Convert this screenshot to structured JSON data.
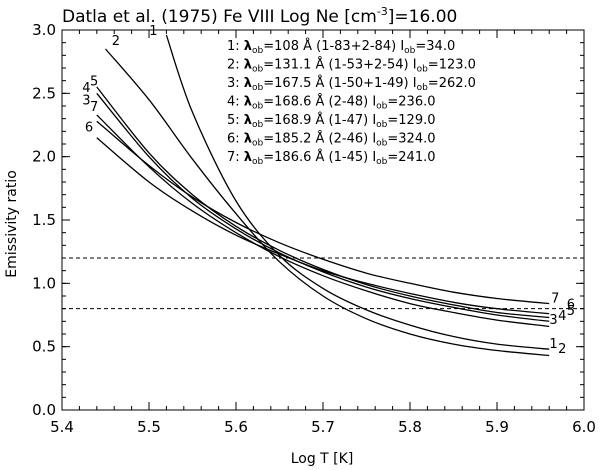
{
  "chart_data": {
    "type": "line",
    "title": {
      "source": "Datla et al. (1975)",
      "ion": "Fe VIII",
      "density": "Log Ne [cm",
      "density_exp": "-3",
      "density_val": "]=16.00"
    },
    "xlabel": "Log T [K]",
    "ylabel": "Emissivity ratio",
    "xlim": [
      5.4,
      6.0
    ],
    "ylim": [
      0.0,
      3.0
    ],
    "xticks": [
      "5.4",
      "5.5",
      "5.6",
      "5.7",
      "5.8",
      "5.9",
      "6.0"
    ],
    "yticks": [
      "0.0",
      "0.5",
      "1.0",
      "1.5",
      "2.0",
      "2.5",
      "3.0"
    ],
    "reference_lines": [
      1.2,
      0.8
    ],
    "series": [
      {
        "name": "1",
        "wavelength": "108",
        "transition": "(1-83+2-84)",
        "iob": "34.0",
        "x": [
          5.52,
          5.55,
          5.6,
          5.65,
          5.7,
          5.75,
          5.8,
          5.85,
          5.9,
          5.96
        ],
        "values": [
          2.96,
          2.35,
          1.65,
          1.22,
          0.96,
          0.79,
          0.67,
          0.58,
          0.52,
          0.48
        ]
      },
      {
        "name": "2",
        "wavelength": "131.1",
        "transition": "(1-53+2-54)",
        "iob": "123.0",
        "x": [
          5.45,
          5.5,
          5.55,
          5.6,
          5.65,
          5.7,
          5.75,
          5.8,
          5.85,
          5.9,
          5.96
        ],
        "values": [
          2.85,
          2.45,
          1.98,
          1.55,
          1.17,
          0.9,
          0.72,
          0.6,
          0.52,
          0.47,
          0.43
        ]
      },
      {
        "name": "3",
        "wavelength": "167.5",
        "transition": "(1-50+1-49)",
        "iob": "262.0",
        "x": [
          5.44,
          5.5,
          5.55,
          5.6,
          5.65,
          5.7,
          5.75,
          5.8,
          5.85,
          5.9,
          5.96
        ],
        "values": [
          2.33,
          1.92,
          1.63,
          1.4,
          1.21,
          1.06,
          0.94,
          0.84,
          0.77,
          0.71,
          0.66
        ]
      },
      {
        "name": "4",
        "wavelength": "168.6",
        "transition": "(2-48)",
        "iob": "236.0",
        "x": [
          5.44,
          5.5,
          5.55,
          5.6,
          5.65,
          5.7,
          5.75,
          5.8,
          5.85,
          5.9,
          5.96
        ],
        "values": [
          2.5,
          2.0,
          1.67,
          1.43,
          1.24,
          1.09,
          0.97,
          0.88,
          0.81,
          0.75,
          0.7
        ]
      },
      {
        "name": "5",
        "wavelength": "168.9",
        "transition": "(1-47)",
        "iob": "129.0",
        "x": [
          5.44,
          5.5,
          5.55,
          5.6,
          5.65,
          5.7,
          5.75,
          5.8,
          5.85,
          5.9,
          5.96
        ],
        "values": [
          2.55,
          2.03,
          1.7,
          1.45,
          1.26,
          1.11,
          0.99,
          0.9,
          0.83,
          0.77,
          0.73
        ]
      },
      {
        "name": "6",
        "wavelength": "185.2",
        "transition": "(2-46)",
        "iob": "324.0",
        "x": [
          5.44,
          5.5,
          5.55,
          5.6,
          5.65,
          5.7,
          5.75,
          5.8,
          5.85,
          5.9,
          5.96
        ],
        "values": [
          2.15,
          1.8,
          1.57,
          1.38,
          1.23,
          1.1,
          1.0,
          0.92,
          0.85,
          0.8,
          0.76
        ]
      },
      {
        "name": "7",
        "wavelength": "186.6",
        "transition": "(1-45)",
        "iob": "241.0",
        "x": [
          5.44,
          5.5,
          5.55,
          5.6,
          5.65,
          5.7,
          5.75,
          5.8,
          5.85,
          5.9,
          5.96
        ],
        "values": [
          2.28,
          1.93,
          1.68,
          1.48,
          1.32,
          1.19,
          1.08,
          1.0,
          0.93,
          0.88,
          0.84
        ]
      }
    ],
    "legend": {
      "placement": "top-right",
      "lambda_symbol": "λ",
      "lambda_sub": "ob",
      "i_symbol": "I",
      "i_sub": "ob",
      "angstrom": "Å"
    },
    "label_positions": {
      "start": {
        "1": [
          5.505,
          2.96
        ],
        "2": [
          5.462,
          2.88
        ],
        "3": [
          5.428,
          2.41
        ],
        "4": [
          5.428,
          2.51
        ],
        "5": [
          5.437,
          2.56
        ],
        "6": [
          5.431,
          2.2
        ],
        "7": [
          5.437,
          2.36
        ]
      },
      "end": {
        "1": [
          5.965,
          0.49
        ],
        "2": [
          5.975,
          0.45
        ],
        "3": [
          5.965,
          0.68
        ],
        "4": [
          5.975,
          0.71
        ],
        "5": [
          5.985,
          0.75
        ],
        "6": [
          5.985,
          0.8
        ],
        "7": [
          5.967,
          0.85
        ]
      }
    }
  }
}
